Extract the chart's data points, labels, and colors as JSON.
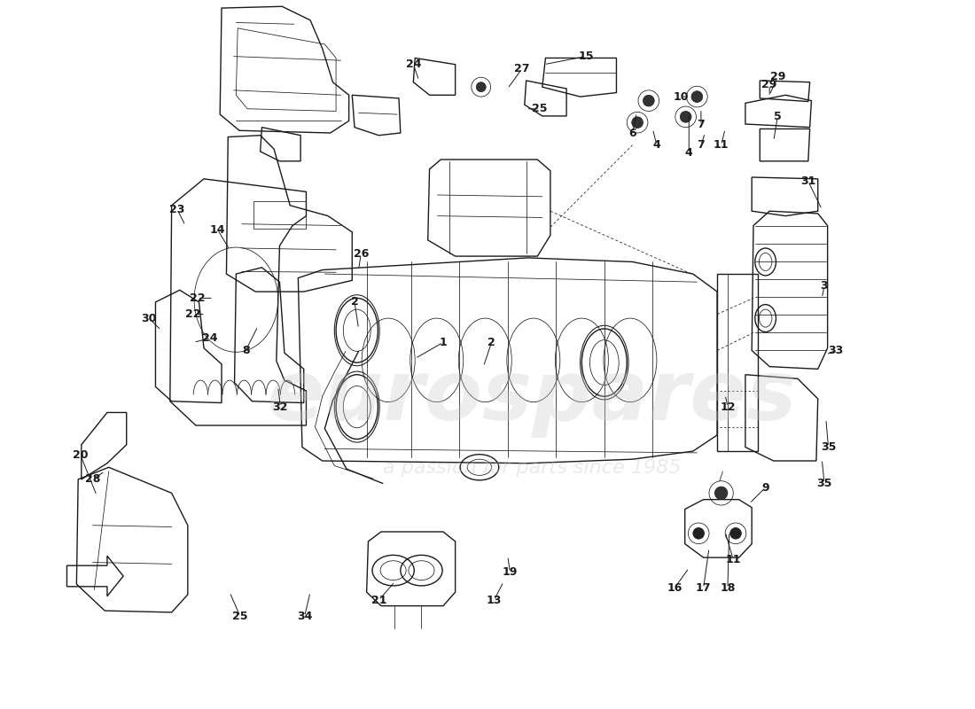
{
  "bg_color": "#ffffff",
  "line_color": "#1a1a1a",
  "watermark_text1": "eurospares",
  "watermark_text2": "a passion for parts since 1985",
  "watermark_color": "#c8c8c8",
  "arrow_color": "#1a1a1a",
  "font_size": 9,
  "font_weight": "bold",
  "part_labels": {
    "1": [
      0.495,
      0.455,
      0.46,
      0.435
    ],
    "2a": [
      0.385,
      0.505,
      0.39,
      0.472
    ],
    "2b": [
      0.555,
      0.455,
      0.545,
      0.425
    ],
    "3": [
      0.968,
      0.525,
      0.965,
      0.51
    ],
    "4a": [
      0.8,
      0.69,
      0.8,
      0.74
    ],
    "4b": [
      0.76,
      0.7,
      0.755,
      0.72
    ],
    "5": [
      0.91,
      0.735,
      0.905,
      0.705
    ],
    "6": [
      0.73,
      0.715,
      0.735,
      0.74
    ],
    "7a": [
      0.815,
      0.725,
      0.815,
      0.745
    ],
    "7b": [
      0.815,
      0.7,
      0.82,
      0.715
    ],
    "8": [
      0.25,
      0.445,
      0.265,
      0.475
    ],
    "9": [
      0.895,
      0.275,
      0.875,
      0.255
    ],
    "10": [
      0.79,
      0.76,
      0.8,
      0.76
    ],
    "11a": [
      0.855,
      0.185,
      0.845,
      0.22
    ],
    "11b": [
      0.84,
      0.7,
      0.845,
      0.72
    ],
    "12": [
      0.848,
      0.375,
      0.845,
      0.39
    ],
    "13": [
      0.558,
      0.135,
      0.57,
      0.158
    ],
    "14": [
      0.215,
      0.595,
      0.23,
      0.57
    ],
    "15": [
      0.672,
      0.81,
      0.62,
      0.8
    ],
    "16": [
      0.782,
      0.15,
      0.8,
      0.175
    ],
    "17": [
      0.818,
      0.15,
      0.825,
      0.2
    ],
    "18": [
      0.848,
      0.15,
      0.85,
      0.22
    ],
    "19": [
      0.578,
      0.17,
      0.575,
      0.19
    ],
    "20": [
      0.045,
      0.315,
      0.065,
      0.265
    ],
    "21": [
      0.415,
      0.135,
      0.435,
      0.158
    ],
    "22a": [
      0.19,
      0.51,
      0.21,
      0.51
    ],
    "22b": [
      0.185,
      0.49,
      0.2,
      0.49
    ],
    "23a": [
      0.165,
      0.62,
      0.175,
      0.6
    ],
    "23b": [
      0.9,
      0.775,
      0.9,
      0.76
    ],
    "24a": [
      0.205,
      0.46,
      0.185,
      0.455
    ],
    "24b": [
      0.458,
      0.8,
      0.465,
      0.78
    ],
    "25a": [
      0.243,
      0.115,
      0.23,
      0.145
    ],
    "25b": [
      0.615,
      0.745,
      0.598,
      0.745
    ],
    "26": [
      0.393,
      0.565,
      0.39,
      0.545
    ],
    "27": [
      0.593,
      0.795,
      0.575,
      0.77
    ],
    "28": [
      0.06,
      0.285,
      0.075,
      0.295
    ],
    "29": [
      0.91,
      0.785,
      0.9,
      0.762
    ],
    "30": [
      0.13,
      0.485,
      0.145,
      0.47
    ],
    "31": [
      0.948,
      0.655,
      0.965,
      0.62
    ],
    "32": [
      0.293,
      0.375,
      0.29,
      0.4
    ],
    "33": [
      0.982,
      0.445,
      0.97,
      0.44
    ],
    "34": [
      0.323,
      0.115,
      0.33,
      0.145
    ],
    "35a": [
      0.973,
      0.325,
      0.97,
      0.36
    ],
    "35b": [
      0.968,
      0.28,
      0.965,
      0.31
    ]
  },
  "display_labels": {
    "1": "1",
    "2a": "2",
    "2b": "2",
    "3": "3",
    "4a": "4",
    "4b": "4",
    "5": "5",
    "6": "6",
    "7a": "7",
    "7b": "7",
    "8": "8",
    "9": "9",
    "10": "10",
    "11a": "11",
    "11b": "11",
    "12": "12",
    "13": "13",
    "14": "14",
    "15": "15",
    "16": "16",
    "17": "17",
    "18": "18",
    "19": "19",
    "20": "20",
    "21": "21",
    "22a": "22",
    "22b": "22",
    "23a": "23",
    "23b": "29",
    "24a": "24",
    "24b": "24",
    "25a": "25",
    "25b": "25",
    "26": "26",
    "27": "27",
    "28": "28",
    "29": "29",
    "30": "30",
    "31": "31",
    "32": "32",
    "33": "33",
    "34": "34",
    "35a": "35",
    "35b": "35"
  }
}
